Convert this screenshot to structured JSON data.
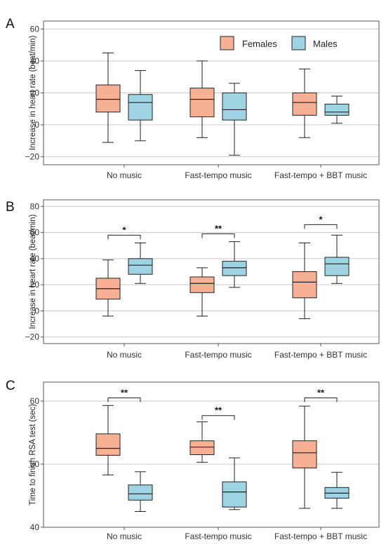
{
  "colors": {
    "females": "#f7b093",
    "males": "#9dd3e3",
    "grid": "#c8c8c8",
    "frame": "#555555"
  },
  "chart_data": [
    {
      "type": "box",
      "panel_label": "A",
      "ylabel": "Increase in heart rate (beat/min)",
      "ylim": [
        -25,
        65
      ],
      "yticks": [
        -20,
        0,
        20,
        40,
        60
      ],
      "ytick_labels": [
        "−20",
        "0",
        "20",
        "40",
        "60"
      ],
      "categories": [
        "No music",
        "Fast-tempo music",
        "Fast-tempo + BBT music"
      ],
      "legend": [
        "Females",
        "Males"
      ],
      "series": [
        {
          "name": "Females",
          "boxes": [
            {
              "min": -11,
              "q1": 8,
              "median": 16,
              "q3": 25,
              "max": 45
            },
            {
              "min": -8,
              "q1": 5,
              "median": 16,
              "q3": 23,
              "max": 40
            },
            {
              "min": -8,
              "q1": 6,
              "median": 14,
              "q3": 20,
              "max": 35
            }
          ]
        },
        {
          "name": "Males",
          "boxes": [
            {
              "min": -10,
              "q1": 3,
              "median": 14,
              "q3": 19,
              "max": 34
            },
            {
              "min": -19,
              "q1": 3,
              "median": 9.5,
              "q3": 20,
              "max": 26
            },
            {
              "min": 1,
              "q1": 6,
              "median": 8,
              "q3": 13,
              "max": 18
            }
          ]
        }
      ],
      "significance": []
    },
    {
      "type": "box",
      "panel_label": "B",
      "ylabel": "Increase in heart rate (beat/min)",
      "ylim": [
        -25,
        85
      ],
      "yticks": [
        -20,
        0,
        20,
        40,
        60,
        80
      ],
      "ytick_labels": [
        "−20",
        "0",
        "20",
        "40",
        "60",
        "80"
      ],
      "categories": [
        "No music",
        "Fast-tempo music",
        "Fast-tempo + BBT music"
      ],
      "series": [
        {
          "name": "Females",
          "boxes": [
            {
              "min": -4,
              "q1": 9,
              "median": 17,
              "q3": 25,
              "max": 39
            },
            {
              "min": -4,
              "q1": 14,
              "median": 21,
              "q3": 26,
              "max": 33
            },
            {
              "min": -6,
              "q1": 10,
              "median": 22,
              "q3": 30,
              "max": 52
            }
          ]
        },
        {
          "name": "Males",
          "boxes": [
            {
              "min": 21,
              "q1": 28,
              "median": 35,
              "q3": 40,
              "max": 52
            },
            {
              "min": 18,
              "q1": 27,
              "median": 33,
              "q3": 38,
              "max": 53
            },
            {
              "min": 21,
              "q1": 27,
              "median": 36,
              "q3": 41,
              "max": 58
            }
          ]
        }
      ],
      "significance": [
        {
          "group": 0,
          "y": 58,
          "label": "*"
        },
        {
          "group": 1,
          "y": 59,
          "label": "**"
        },
        {
          "group": 2,
          "y": 66,
          "label": "*"
        }
      ]
    },
    {
      "type": "box",
      "panel_label": "C",
      "ylabel": "Time to finish RSA test (sec)",
      "ylim": [
        40,
        63
      ],
      "yticks": [
        40,
        50,
        60
      ],
      "ytick_labels": [
        "40",
        "50",
        "60"
      ],
      "categories": [
        "No music",
        "Fast-tempo music",
        "Fast-tempo + BBT music"
      ],
      "series": [
        {
          "name": "Females",
          "boxes": [
            {
              "min": 48.3,
              "q1": 51.4,
              "median": 52.5,
              "q3": 54.8,
              "max": 59.3
            },
            {
              "min": 50.3,
              "q1": 51.5,
              "median": 52.7,
              "q3": 53.7,
              "max": 56.7
            },
            {
              "min": 43.0,
              "q1": 49.4,
              "median": 51.8,
              "q3": 53.7,
              "max": 59.2
            }
          ]
        },
        {
          "name": "Males",
          "boxes": [
            {
              "min": 42.5,
              "q1": 44.3,
              "median": 45.3,
              "q3": 46.7,
              "max": 48.8
            },
            {
              "min": 42.8,
              "q1": 43.2,
              "median": 45.6,
              "q3": 47.2,
              "max": 51.0
            },
            {
              "min": 43.0,
              "q1": 44.6,
              "median": 45.4,
              "q3": 46.3,
              "max": 48.7
            }
          ]
        }
      ],
      "significance": [
        {
          "group": 0,
          "y": 60.5,
          "label": "**"
        },
        {
          "group": 1,
          "y": 57.7,
          "label": "**"
        },
        {
          "group": 2,
          "y": 60.5,
          "label": "**"
        }
      ]
    }
  ]
}
